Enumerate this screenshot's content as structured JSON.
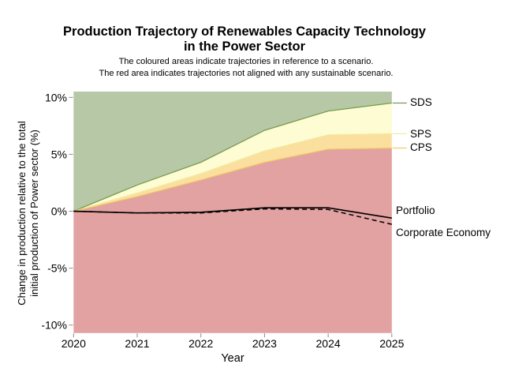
{
  "chart_data": {
    "type": "area",
    "title": "Production Trajectory of Renewables Capacity Technology in the Power Sector",
    "title_lines": [
      "Production Trajectory of Renewables Capacity Technology",
      "in the Power Sector"
    ],
    "subtitle_lines": [
      "The coloured areas indicate trajectories in reference to a scenario.",
      "The red area indicates trajectories not aligned with any sustainable scenario."
    ],
    "xlabel": "Year",
    "ylabel": "Change in production relative to the total initial production of Power sector (%)",
    "ylabel_lines": [
      "Change in production relative to the total",
      "initial production of Power sector (%)"
    ],
    "x": [
      2020,
      2021,
      2022,
      2023,
      2024,
      2025
    ],
    "ylim": [
      -10.5,
      10.5
    ],
    "y_ticks": [
      {
        "label": "10%",
        "value": 10
      },
      {
        "label": "5%",
        "value": 5
      },
      {
        "label": "0%",
        "value": 0
      },
      {
        "label": "-5%",
        "value": -5
      },
      {
        "label": "-10%",
        "value": -10
      }
    ],
    "x_ticks": [
      {
        "label": "2020",
        "value": 2020
      },
      {
        "label": "2021",
        "value": 2021
      },
      {
        "label": "2022",
        "value": 2022
      },
      {
        "label": "2023",
        "value": 2023
      },
      {
        "label": "2024",
        "value": 2024
      },
      {
        "label": "2025",
        "value": 2025
      }
    ],
    "series": [
      {
        "name": "SDS",
        "role": "scenario-boundary",
        "values": [
          0,
          2.3,
          4.3,
          7.1,
          8.8,
          9.5
        ],
        "line_color": "#7a9b51",
        "area_color": "#b6c8a5"
      },
      {
        "name": "SPS",
        "role": "scenario-boundary",
        "values": [
          0,
          1.6,
          3.3,
          5.3,
          6.7,
          6.8
        ],
        "line_color": "#f2ea9e",
        "area_color": "#fdfcd2"
      },
      {
        "name": "CPS",
        "role": "scenario-boundary",
        "values": [
          0,
          1.3,
          2.75,
          4.3,
          5.45,
          5.55
        ],
        "line_color": "#f0cb6a",
        "area_color": "#fbdf9e"
      },
      {
        "name": "Portfolio",
        "role": "trajectory",
        "values": [
          0,
          -0.15,
          -0.1,
          0.3,
          0.3,
          -0.6
        ],
        "line_color": "#000000",
        "line_style": "solid"
      },
      {
        "name": "Corporate Economy",
        "role": "trajectory",
        "values": [
          0,
          -0.15,
          -0.15,
          0.2,
          0.15,
          -1.15
        ],
        "line_color": "#000000",
        "line_style": "dashed"
      }
    ],
    "unaligned_area_color": "#e2a2a2",
    "right_labels": [
      {
        "text": "SDS",
        "connector": true,
        "connector_color": "#7a9b51"
      },
      {
        "text": "SPS",
        "connector": true,
        "connector_color": "#f2ea9e"
      },
      {
        "text": "CPS",
        "connector": true,
        "connector_color": "#f0cb6a"
      },
      {
        "text": "Portfolio",
        "connector": false
      },
      {
        "text": "Corporate Economy",
        "connector": false
      }
    ],
    "tick_color": "#8a8a8a",
    "legend_position": "right",
    "grid": false
  }
}
